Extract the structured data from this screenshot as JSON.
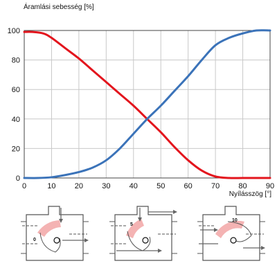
{
  "chart_data": {
    "type": "line",
    "ylabel": "Áramlási sebesség [%]",
    "xlabel": "Nyílásszög [°]",
    "xlim": [
      0,
      90
    ],
    "ylim": [
      0,
      100
    ],
    "x_ticks": [
      "0",
      "10",
      "20",
      "30",
      "40",
      "50",
      "60",
      "70",
      "80",
      "90"
    ],
    "y_ticks": [
      "0",
      "20",
      "40",
      "60",
      "80",
      "100"
    ],
    "grid": true,
    "series": [
      {
        "color": "#e3151d",
        "x": [
          0,
          3,
          7,
          10,
          15,
          20,
          25,
          30,
          35,
          40,
          45,
          50,
          55,
          60,
          65,
          70,
          75,
          80,
          85,
          90
        ],
        "y": [
          99,
          99,
          98,
          95,
          88,
          81,
          73,
          65,
          57,
          49,
          40,
          31,
          21,
          12,
          5,
          1,
          0,
          0,
          0,
          0
        ]
      },
      {
        "color": "#3b73b9",
        "x": [
          0,
          5,
          10,
          15,
          20,
          25,
          30,
          35,
          40,
          45,
          50,
          55,
          60,
          65,
          70,
          75,
          80,
          85,
          90
        ],
        "y": [
          0,
          0,
          0.5,
          2,
          4,
          7,
          12,
          20,
          30,
          40,
          49,
          59,
          69,
          80,
          90,
          95,
          98,
          100,
          100
        ]
      }
    ]
  },
  "valve_diagrams": [
    {
      "disc_label": "0"
    },
    {
      "disc_label": "5"
    },
    {
      "disc_label": "10"
    }
  ],
  "colors": {
    "grid": "#c8c8c8",
    "highlight": "#f4b3b3",
    "valve_lines": "#555555"
  }
}
